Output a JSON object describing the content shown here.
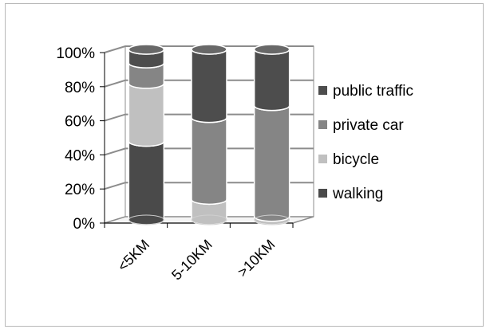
{
  "colors": {
    "walking": "#4a4a4a",
    "bicycle": "#c0c0c0",
    "private car": "#858585",
    "public traffic": "#4d4d4d",
    "grid": "#8c8c8c",
    "axis": "#000000",
    "wall": "#ffffff"
  },
  "chart_data": {
    "type": "bar",
    "stacked": true,
    "percent": true,
    "three_d": true,
    "categories": [
      "<5KM",
      "5-10KM",
      ">10KM"
    ],
    "series": [
      {
        "name": "walking",
        "values": [
          46,
          0,
          0
        ]
      },
      {
        "name": "bicycle",
        "values": [
          34,
          12,
          2
        ]
      },
      {
        "name": "private car",
        "values": [
          12,
          48,
          65
        ]
      },
      {
        "name": "public traffic",
        "values": [
          8,
          40,
          33
        ]
      }
    ],
    "yticks": [
      "0%",
      "20%",
      "40%",
      "60%",
      "80%",
      "100%"
    ],
    "ylim": [
      0,
      100
    ],
    "grid": true,
    "legend": "right",
    "legend_order": [
      "public traffic",
      "private car",
      "bicycle",
      "walking"
    ]
  }
}
